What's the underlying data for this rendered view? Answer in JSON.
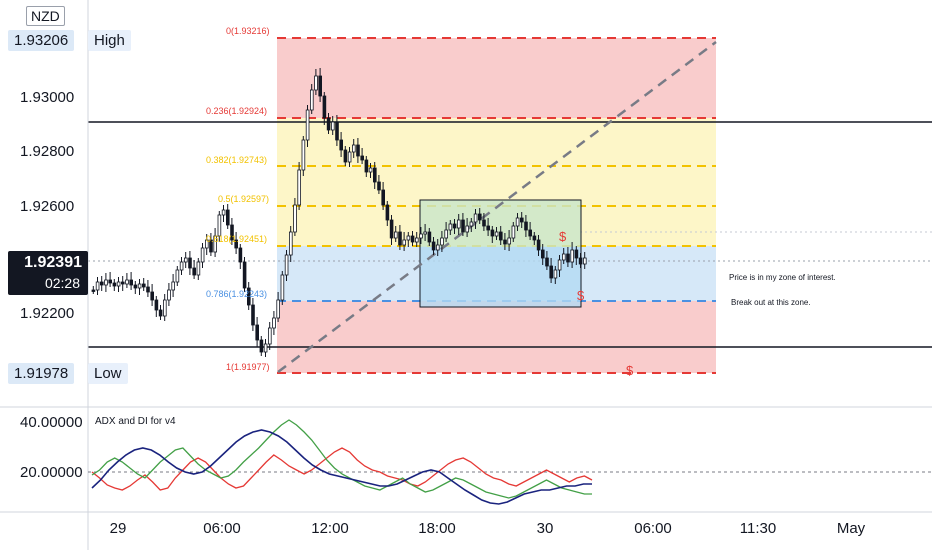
{
  "symbol": "NZD",
  "price_axis": {
    "high": {
      "value": "1.93206",
      "label": "High"
    },
    "low": {
      "value": "1.91978",
      "label": "Low"
    },
    "ticks": [
      "1.93000",
      "1.92800",
      "1.92600",
      "1.92200"
    ],
    "current": {
      "price": "1.92391",
      "countdown": "02:28"
    }
  },
  "indicator": {
    "title": "ADX and DI for v4",
    "ticks": [
      "40.00000",
      "20.00000"
    ]
  },
  "time_axis": [
    "29",
    "06:00",
    "12:00",
    "18:00",
    "30",
    "06:00",
    "11:30",
    "May"
  ],
  "fib_levels": [
    {
      "text": "0(1.93216)",
      "color": "#e53935"
    },
    {
      "text": "0.236(1.92924)",
      "color": "#e53935"
    },
    {
      "text": "0.382(1.92743)",
      "color": "#f2c200"
    },
    {
      "text": "0.5(1.92597)",
      "color": "#f2c200"
    },
    {
      "text": "0.618(1.92451)",
      "color": "#f2c200"
    },
    {
      "text": "0.786(1.92243)",
      "color": "#4a90e2"
    },
    {
      "text": "1(1.91977)",
      "color": "#e53935"
    }
  ],
  "annotations": {
    "note1": "Price is in my zone of interest.",
    "note2": "Break out at this zone.",
    "dollar": "$"
  },
  "colors": {
    "fib_red": "#e53935",
    "fib_yellow": "#f2c200",
    "fib_blue": "#4a90e2",
    "adx": "#1a237e",
    "di_plus": "#43a047",
    "di_minus": "#e53935",
    "candle": "#131722"
  }
}
